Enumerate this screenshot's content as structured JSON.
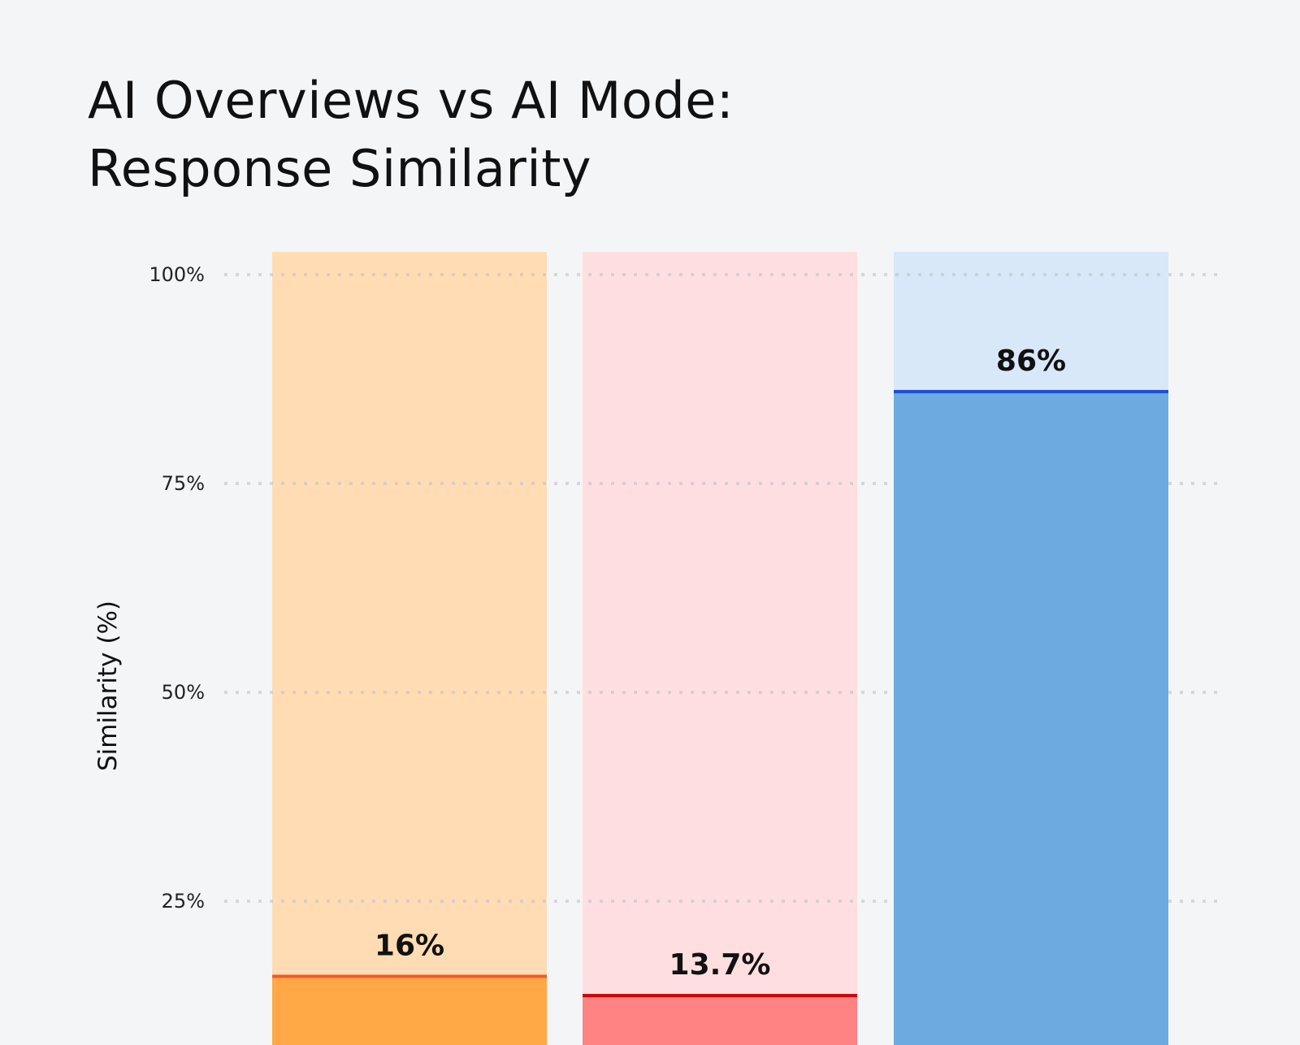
{
  "chart_data": {
    "type": "bar",
    "title": [
      "AI Overviews vs AI Mode:",
      "Response Similarity"
    ],
    "xlabel": "",
    "ylabel": "Similarity (%)",
    "ylim": [
      0,
      100
    ],
    "yticks": [
      25,
      50,
      75,
      100
    ],
    "ytick_labels": [
      "25%",
      "50%",
      "75%",
      "100%"
    ],
    "grid": true,
    "categories": [
      "",
      "",
      ""
    ],
    "values": [
      16,
      13.7,
      86
    ],
    "data_labels": [
      "16%",
      "13.7%",
      "86%"
    ],
    "colors": {
      "fill": [
        "#ffa845",
        "#ff8383",
        "#6caae0"
      ],
      "background": [
        "#ffdcb3",
        "#ffdee1",
        "#d8e8f8"
      ],
      "top_line": [
        "#f05a28",
        "#cc0000",
        "#1a4fd6"
      ]
    }
  }
}
